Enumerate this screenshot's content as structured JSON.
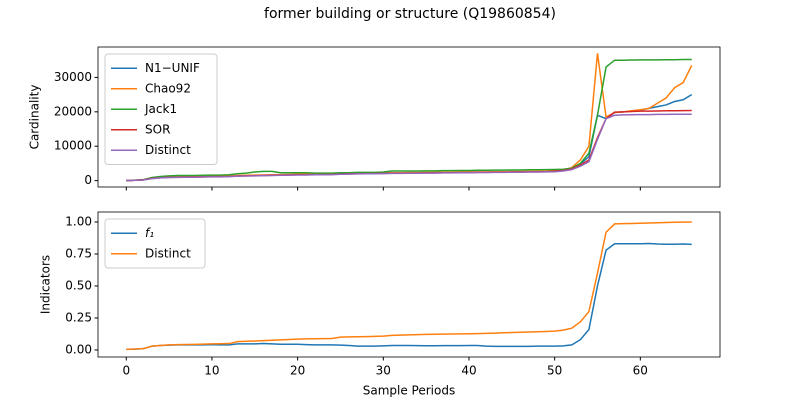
{
  "title": "former building or structure (Q19860854)",
  "chart_data": [
    {
      "type": "line",
      "ylabel": "Cardinality",
      "x": [
        0,
        1,
        2,
        3,
        4,
        5,
        6,
        7,
        8,
        9,
        10,
        11,
        12,
        13,
        14,
        15,
        16,
        17,
        18,
        19,
        20,
        21,
        22,
        23,
        24,
        25,
        26,
        27,
        28,
        29,
        30,
        31,
        32,
        33,
        34,
        35,
        36,
        37,
        38,
        39,
        40,
        41,
        42,
        43,
        44,
        45,
        46,
        47,
        48,
        49,
        50,
        51,
        52,
        53,
        54,
        55,
        56,
        57,
        58,
        59,
        60,
        61,
        62,
        63,
        64,
        65,
        66
      ],
      "xlim": [
        -3.3,
        69.3
      ],
      "xticks": [
        0,
        10,
        20,
        30,
        40,
        50,
        60
      ],
      "ylim": [
        -1850,
        38840
      ],
      "yticks": [
        0,
        10000,
        20000,
        30000
      ],
      "legend": "upper left",
      "series": [
        {
          "name": "N1−UNIF",
          "color": "#1f77b4",
          "values": [
            0,
            120,
            220,
            700,
            900,
            1000,
            1050,
            1100,
            1100,
            1150,
            1200,
            1200,
            1250,
            1400,
            1450,
            1500,
            1550,
            1600,
            1650,
            1700,
            1750,
            1750,
            1800,
            1800,
            1850,
            1950,
            2000,
            2050,
            2100,
            2100,
            2150,
            2200,
            2200,
            2250,
            2250,
            2300,
            2300,
            2350,
            2350,
            2400,
            2400,
            2450,
            2450,
            2500,
            2500,
            2550,
            2550,
            2600,
            2600,
            2650,
            2800,
            3000,
            3500,
            4800,
            7000,
            19000,
            18000,
            19800,
            20000,
            20200,
            20500,
            21000,
            21500,
            22000,
            23000,
            23500,
            25000
          ]
        },
        {
          "name": "Chao92",
          "color": "#ff7f0e",
          "values": [
            0,
            130,
            230,
            800,
            1000,
            1100,
            1150,
            1200,
            1200,
            1250,
            1300,
            1300,
            1350,
            1500,
            1550,
            1600,
            1650,
            1700,
            1750,
            1800,
            1850,
            1850,
            1900,
            1900,
            1950,
            2050,
            2100,
            2150,
            2200,
            2200,
            2250,
            2300,
            2300,
            2350,
            2350,
            2400,
            2400,
            2450,
            2450,
            2500,
            2500,
            2550,
            2550,
            2600,
            2600,
            2650,
            2650,
            2700,
            2700,
            2750,
            2900,
            3100,
            3800,
            6000,
            10000,
            37000,
            18500,
            19800,
            20000,
            20300,
            20600,
            21000,
            22500,
            24000,
            27000,
            28500,
            33500
          ]
        },
        {
          "name": "Jack1",
          "color": "#2ca02c",
          "values": [
            0,
            150,
            300,
            900,
            1200,
            1400,
            1500,
            1500,
            1500,
            1550,
            1600,
            1600,
            1700,
            2000,
            2200,
            2500,
            2700,
            2700,
            2300,
            2300,
            2300,
            2300,
            2200,
            2200,
            2200,
            2300,
            2300,
            2400,
            2400,
            2400,
            2500,
            2800,
            2800,
            2800,
            2800,
            2850,
            2850,
            2900,
            2900,
            2950,
            2950,
            3000,
            3000,
            3050,
            3050,
            3100,
            3100,
            3150,
            3150,
            3200,
            3250,
            3300,
            3600,
            5000,
            8000,
            19000,
            33000,
            35000,
            35000,
            35050,
            35100,
            35100,
            35100,
            35150,
            35150,
            35200,
            35200
          ]
        },
        {
          "name": "SOR",
          "color": "#d62728",
          "values": [
            0,
            110,
            210,
            650,
            850,
            950,
            1000,
            1050,
            1050,
            1100,
            1150,
            1150,
            1200,
            1350,
            1400,
            1450,
            1500,
            1550,
            1600,
            1650,
            1700,
            1700,
            1750,
            1750,
            1800,
            1900,
            1950,
            2000,
            2050,
            2050,
            2100,
            2150,
            2150,
            2200,
            2200,
            2250,
            2250,
            2300,
            2300,
            2350,
            2350,
            2400,
            2400,
            2450,
            2450,
            2500,
            2500,
            2550,
            2550,
            2600,
            2750,
            2950,
            3400,
            4500,
            6000,
            12500,
            18000,
            19900,
            20000,
            20100,
            20200,
            20200,
            20250,
            20300,
            20300,
            20350,
            20400
          ]
        },
        {
          "name": "Distinct",
          "color": "#9467bd",
          "values": [
            0,
            100,
            200,
            600,
            800,
            900,
            950,
            1000,
            1000,
            1050,
            1100,
            1100,
            1150,
            1300,
            1350,
            1400,
            1450,
            1500,
            1550,
            1600,
            1650,
            1650,
            1700,
            1700,
            1750,
            1850,
            1900,
            1950,
            2000,
            2000,
            2050,
            2100,
            2100,
            2150,
            2150,
            2200,
            2200,
            2250,
            2250,
            2300,
            2300,
            2350,
            2350,
            2400,
            2400,
            2450,
            2450,
            2500,
            2500,
            2550,
            2600,
            2800,
            3200,
            4200,
            5500,
            12000,
            18000,
            19000,
            19100,
            19150,
            19200,
            19200,
            19250,
            19250,
            19300,
            19300,
            19300
          ]
        }
      ]
    },
    {
      "type": "line",
      "ylabel": "Indicators",
      "xlabel": "Sample Periods",
      "x": [
        0,
        1,
        2,
        3,
        4,
        5,
        6,
        7,
        8,
        9,
        10,
        11,
        12,
        13,
        14,
        15,
        16,
        17,
        18,
        19,
        20,
        21,
        22,
        23,
        24,
        25,
        26,
        27,
        28,
        29,
        30,
        31,
        32,
        33,
        34,
        35,
        36,
        37,
        38,
        39,
        40,
        41,
        42,
        43,
        44,
        45,
        46,
        47,
        48,
        49,
        50,
        51,
        52,
        53,
        54,
        55,
        56,
        57,
        58,
        59,
        60,
        61,
        62,
        63,
        64,
        65,
        66
      ],
      "xlim": [
        -3.3,
        69.3
      ],
      "xticks": [
        0,
        10,
        20,
        30,
        40,
        50,
        60
      ],
      "ylim": [
        -0.055,
        1.078
      ],
      "yticks": [
        {
          "value": 0,
          "label": "0.00"
        },
        {
          "value": 0.25,
          "label": "0.25"
        },
        {
          "value": 0.5,
          "label": "0.50"
        },
        {
          "value": 0.75,
          "label": "0.75"
        },
        {
          "value": 1,
          "label": "1.00"
        }
      ],
      "legend": "upper left",
      "series": [
        {
          "name": "f₁",
          "color": "#1f77b4",
          "values": [
            0.005,
            0.007,
            0.01,
            0.03,
            0.035,
            0.038,
            0.04,
            0.04,
            0.04,
            0.04,
            0.042,
            0.04,
            0.04,
            0.048,
            0.048,
            0.048,
            0.05,
            0.048,
            0.045,
            0.045,
            0.045,
            0.042,
            0.04,
            0.04,
            0.04,
            0.038,
            0.035,
            0.03,
            0.03,
            0.03,
            0.032,
            0.035,
            0.035,
            0.035,
            0.034,
            0.033,
            0.033,
            0.034,
            0.034,
            0.034,
            0.035,
            0.035,
            0.03,
            0.028,
            0.028,
            0.028,
            0.028,
            0.028,
            0.03,
            0.03,
            0.03,
            0.032,
            0.04,
            0.08,
            0.16,
            0.5,
            0.78,
            0.83,
            0.83,
            0.83,
            0.83,
            0.832,
            0.828,
            0.826,
            0.826,
            0.828,
            0.825
          ]
        },
        {
          "name": "Distinct",
          "color": "#ff7f0e",
          "values": [
            0.005,
            0.007,
            0.01,
            0.03,
            0.035,
            0.04,
            0.042,
            0.043,
            0.044,
            0.046,
            0.048,
            0.049,
            0.05,
            0.065,
            0.068,
            0.07,
            0.073,
            0.076,
            0.079,
            0.082,
            0.085,
            0.087,
            0.088,
            0.089,
            0.09,
            0.1,
            0.102,
            0.103,
            0.104,
            0.106,
            0.108,
            0.114,
            0.116,
            0.118,
            0.12,
            0.122,
            0.123,
            0.124,
            0.125,
            0.126,
            0.127,
            0.128,
            0.13,
            0.132,
            0.134,
            0.136,
            0.138,
            0.14,
            0.142,
            0.144,
            0.147,
            0.155,
            0.17,
            0.22,
            0.3,
            0.6,
            0.92,
            0.985,
            0.987,
            0.988,
            0.99,
            0.992,
            0.994,
            0.996,
            0.998,
            0.999,
            1.0
          ]
        }
      ]
    }
  ]
}
